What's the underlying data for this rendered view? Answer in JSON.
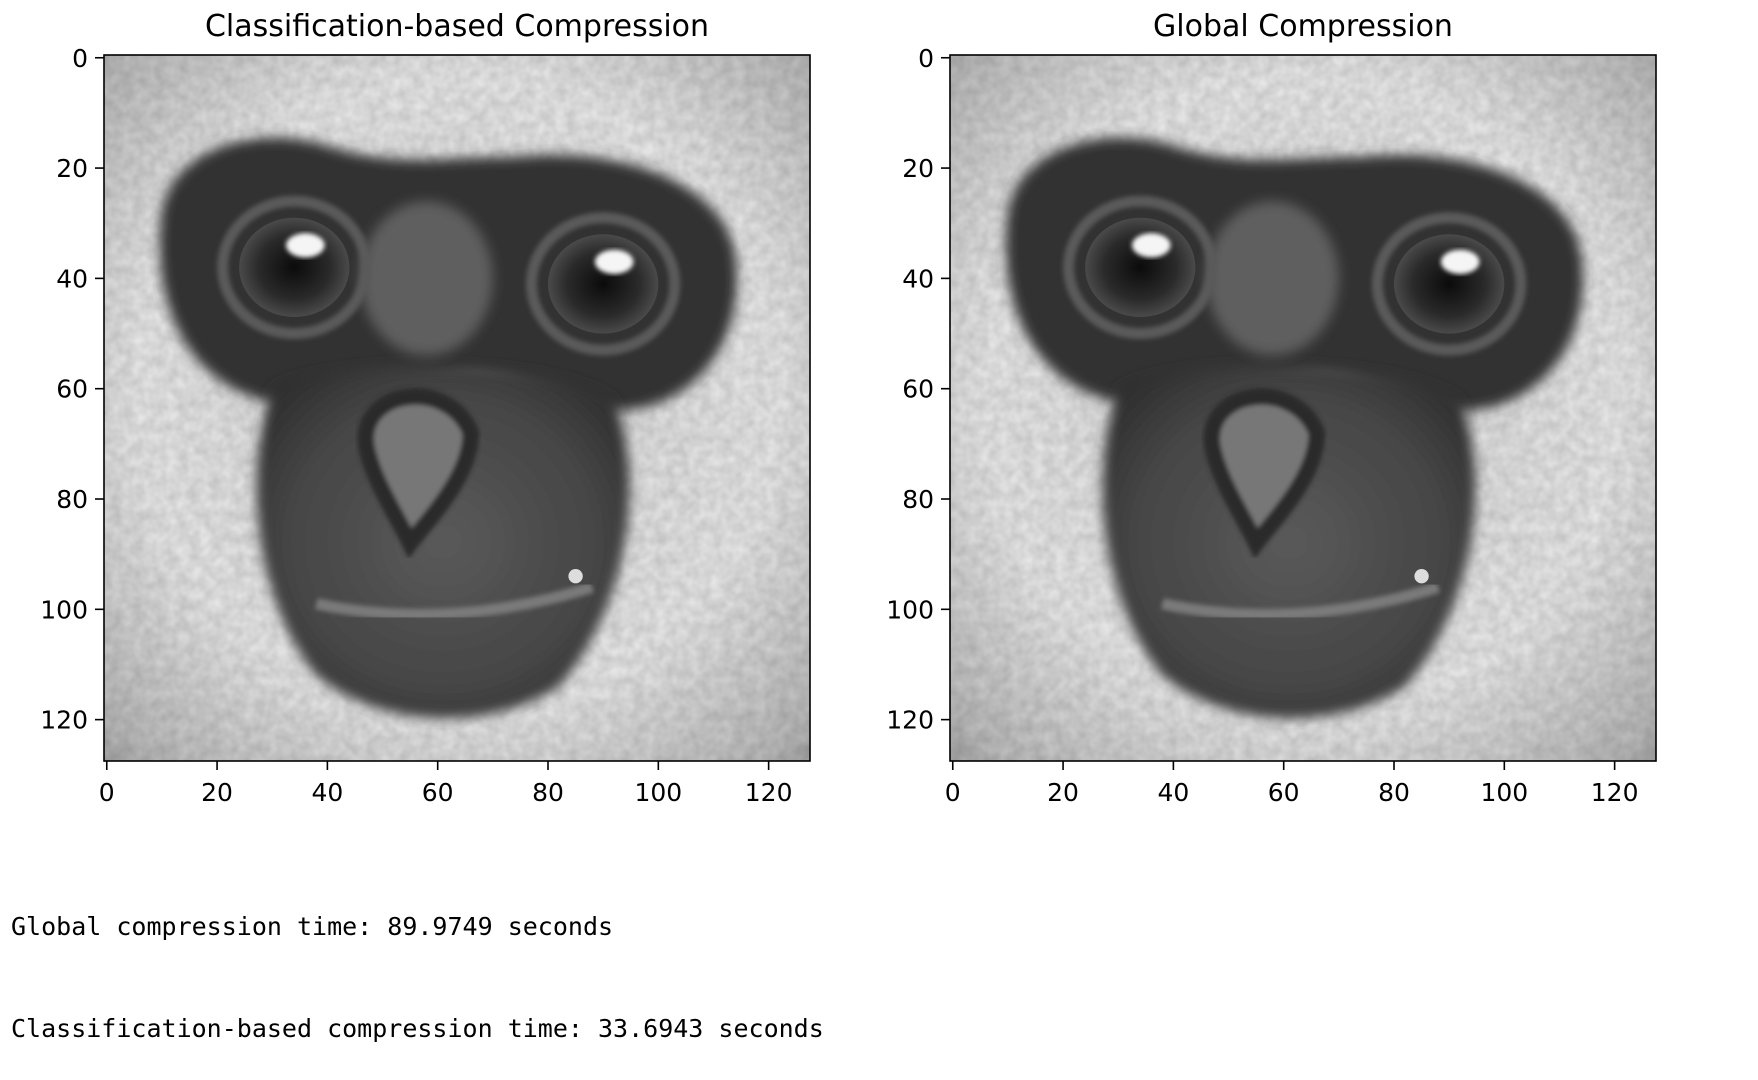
{
  "chart_data": [
    {
      "type": "image",
      "title": "Classification-based Compression",
      "xlim": [
        -0.5,
        127.5
      ],
      "ylim": [
        127.5,
        -0.5
      ],
      "x_ticks": [
        0,
        20,
        40,
        60,
        80,
        100,
        120
      ],
      "y_ticks": [
        0,
        20,
        40,
        60,
        80,
        100,
        120
      ],
      "image_resolution": [
        128,
        128
      ],
      "colormap": "gray",
      "content": "grayscale photo of a gibbon face"
    },
    {
      "type": "image",
      "title": "Global Compression",
      "xlim": [
        -0.5,
        127.5
      ],
      "ylim": [
        127.5,
        -0.5
      ],
      "x_ticks": [
        0,
        20,
        40,
        60,
        80,
        100,
        120
      ],
      "y_ticks": [
        0,
        20,
        40,
        60,
        80,
        100,
        120
      ],
      "image_resolution": [
        128,
        128
      ],
      "colormap": "gray",
      "content": "grayscale photo of a gibbon face"
    }
  ],
  "output": {
    "lines": [
      "Global compression time: 89.9749 seconds",
      "Classification-based compression time: 33.6943 seconds"
    ]
  }
}
